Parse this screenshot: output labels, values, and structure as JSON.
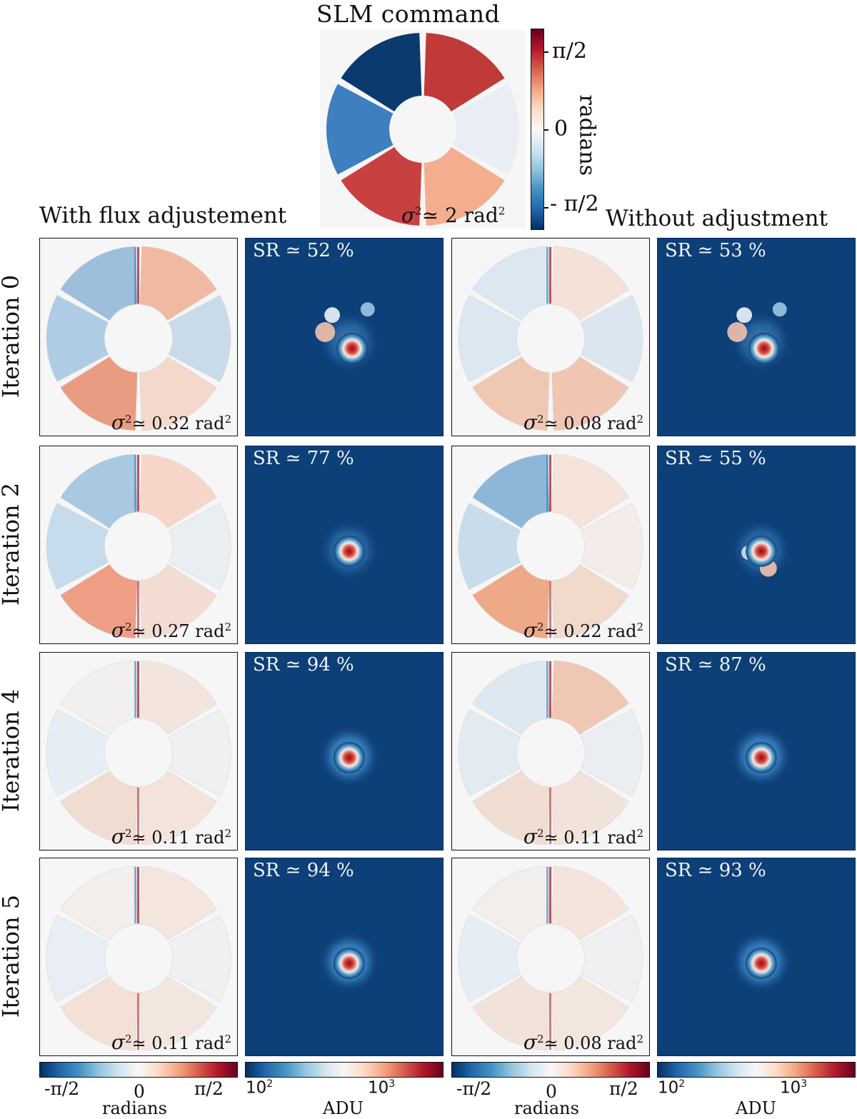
{
  "figure": {
    "top_title": "SLM command",
    "top_colorbar": {
      "ticks": [
        "π/2",
        "0",
        "- π/2"
      ],
      "label": "radians"
    },
    "top_sigma": {
      "symbol": "σ",
      "exp": "2",
      "value": "≃ 2 rad",
      "unit_exp": "2"
    },
    "group_left": "With flux adjustement",
    "group_right": "Without adjustment",
    "rows": [
      {
        "label": "Iteration 0",
        "left_sr": "SR ≃ 52 %",
        "left_sigma": "≃ 0.32 rad",
        "right_sr": "SR ≃ 53 %",
        "right_sigma": "≃ 0.08 rad"
      },
      {
        "label": "Iteration 2",
        "left_sr": "SR ≃ 77 %",
        "left_sigma": "≃ 0.27 rad",
        "right_sr": "SR ≃ 55 %",
        "right_sigma": "≃ 0.22 rad"
      },
      {
        "label": "Iteration 4",
        "left_sr": "SR ≃ 94 %",
        "left_sigma": "≃ 0.11 rad",
        "right_sr": "SR ≃ 87 %",
        "right_sigma": "≃ 0.11 rad"
      },
      {
        "label": "Iteration 5",
        "left_sr": "SR ≃ 94 %",
        "left_sigma": "≃ 0.11 rad",
        "right_sr": "SR ≃ 93 %",
        "right_sigma": "≃ 0.08 rad"
      }
    ],
    "sigma_symbol": "σ",
    "sigma_exp": "2",
    "unit_exp": "2",
    "bottom_colorbars": {
      "phase_ticks": [
        "-π/2",
        "0",
        "π/2"
      ],
      "phase_label": "radians",
      "adu_ticks": [
        "10",
        "10"
      ],
      "adu_exps": [
        "2",
        "3"
      ],
      "adu_label": "ADU"
    },
    "slm_segments": [
      {
        "name": "upper-left",
        "color": "#0b3a6e"
      },
      {
        "name": "upper-right",
        "color": "#c03a3a"
      },
      {
        "name": "right",
        "color": "#e8eef3"
      },
      {
        "name": "lower-right",
        "color": "#f5ad90"
      },
      {
        "name": "lower-left",
        "color": "#c84040"
      },
      {
        "name": "left",
        "color": "#3d7fbf"
      }
    ],
    "colors": {
      "psf_bg": "#0d3f78",
      "phase_bg": "#f6f6f6"
    }
  }
}
